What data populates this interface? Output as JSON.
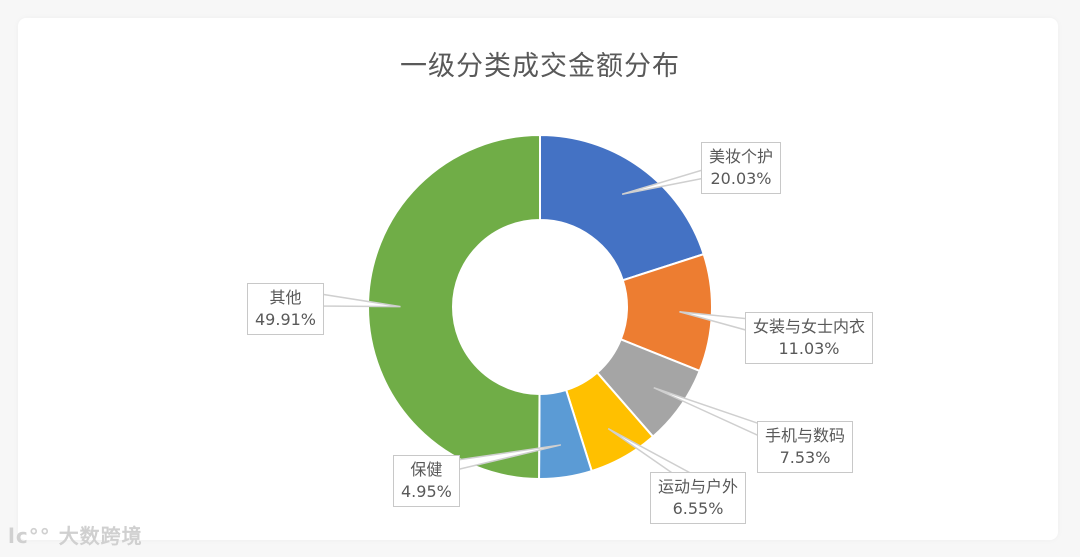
{
  "chart_data": {
    "type": "pie",
    "title": "一级分类成交金额分布",
    "donut": true,
    "categories": [
      "美妆个护",
      "女装与女士内衣",
      "手机与数码",
      "运动与户外",
      "保健",
      "其他"
    ],
    "values": [
      20.03,
      11.03,
      7.53,
      6.55,
      4.95,
      49.91
    ],
    "labels": [
      "20.03%",
      "11.03%",
      "7.53%",
      "6.55%",
      "4.95%",
      "49.91%"
    ],
    "colors": [
      "#4472c4",
      "#ed7d31",
      "#a5a5a5",
      "#ffc000",
      "#5b9bd5",
      "#70ad47"
    ],
    "legend": "none (callout data labels)"
  },
  "labels": [
    {
      "name": "美妆个护",
      "pct": "20.03%"
    },
    {
      "name": "女装与女士内衣",
      "pct": "11.03%"
    },
    {
      "name": "手机与数码",
      "pct": "7.53%"
    },
    {
      "name": "运动与户外",
      "pct": "6.55%"
    },
    {
      "name": "保健",
      "pct": "4.95%"
    },
    {
      "name": "其他",
      "pct": "49.91%"
    }
  ],
  "watermark": "大数跨境"
}
